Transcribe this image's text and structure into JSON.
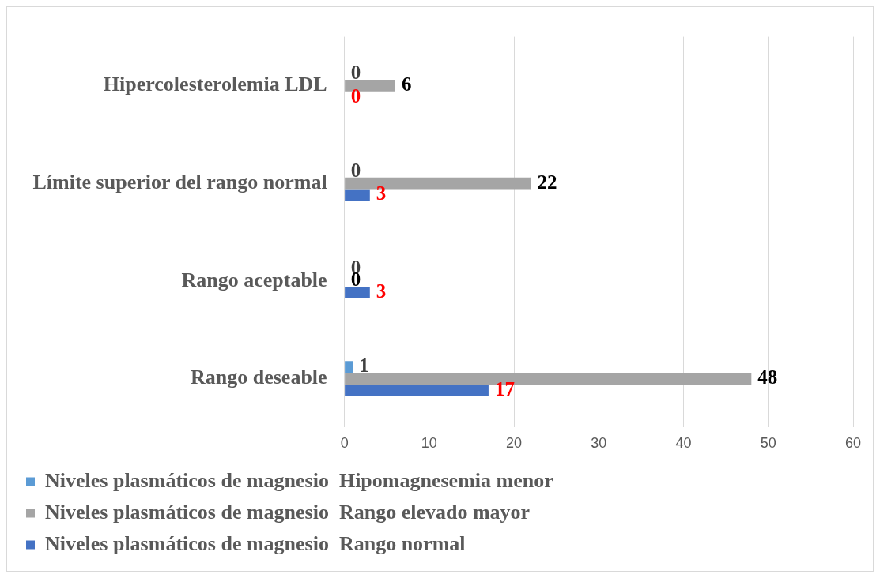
{
  "chart_data": {
    "type": "bar",
    "orientation": "horizontal",
    "categories": [
      "Hipercolesterolemia LDL",
      "Límite superior del rango normal",
      "Rango aceptable",
      "Rango deseable"
    ],
    "series": [
      {
        "name": "Niveles plasmáticos de magnesio  Hipomagnesemia menor",
        "color": "#5b9bd5",
        "values": [
          0,
          0,
          0,
          1
        ]
      },
      {
        "name": "Niveles plasmáticos de magnesio  Rango elevado mayor",
        "color": "#a5a5a5",
        "values": [
          6,
          22,
          0,
          48
        ]
      },
      {
        "name": "Niveles plasmáticos de magnesio  Rango normal",
        "color": "#4472c4",
        "values": [
          0,
          3,
          3,
          17
        ]
      }
    ],
    "xlim": [
      0,
      60
    ],
    "xticks": [
      0,
      10,
      20,
      30,
      40,
      50,
      60
    ],
    "grid": "x",
    "legend": "bottom",
    "data_labels": true
  }
}
